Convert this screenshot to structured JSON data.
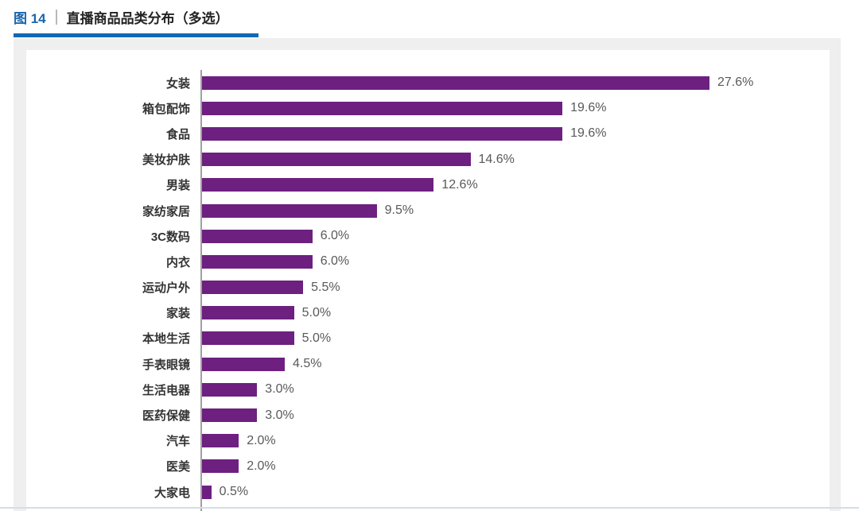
{
  "header": {
    "figure_label": "图 14",
    "title": "直播商品品类分布（多选）"
  },
  "colors": {
    "accent_blue": "#1168B4",
    "figure_label_blue": "#1A66AD",
    "bar_purple": "#6D2080",
    "card_bg": "#EFEFEF",
    "axis_gray": "#A0A0A0",
    "category_text": "#333333",
    "value_text": "#595959",
    "bottom_line": "#D5DDE5"
  },
  "chart_data": {
    "type": "bar",
    "orientation": "horizontal",
    "figure_label": "图 14",
    "title": "直播商品品类分布（多选）",
    "categories": [
      "女装",
      "箱包配饰",
      "食品",
      "美妆护肤",
      "男装",
      "家纺家居",
      "3C数码",
      "内衣",
      "运动户外",
      "家装",
      "本地生活",
      "手表眼镜",
      "生活电器",
      "医药保健",
      "汽车",
      "医美",
      "大家电"
    ],
    "values": [
      27.6,
      19.6,
      19.6,
      14.6,
      12.6,
      9.5,
      6.0,
      6.0,
      5.5,
      5.0,
      5.0,
      4.5,
      3.0,
      3.0,
      2.0,
      2.0,
      0.5
    ],
    "labels": [
      "27.6%",
      "19.6%",
      "19.6%",
      "14.6%",
      "12.6%",
      "9.5%",
      "6.0%",
      "6.0%",
      "5.5%",
      "5.0%",
      "5.0%",
      "4.5%",
      "3.0%",
      "3.0%",
      "2.0%",
      "2.0%",
      "0.5%"
    ],
    "value_suffix": "%",
    "xlim": [
      0,
      34
    ],
    "grid": false,
    "legend": null,
    "value_labels_position": "end-of-bar"
  }
}
